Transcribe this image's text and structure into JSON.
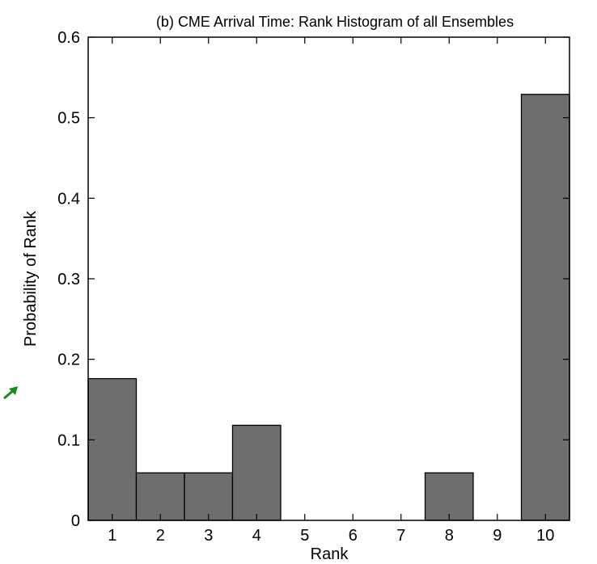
{
  "chart_data": {
    "type": "bar",
    "title": "(b) CME Arrival Time: Rank Histogram of all Ensembles",
    "xlabel": "Rank",
    "ylabel": "Probability of Rank",
    "categories": [
      "1",
      "2",
      "3",
      "4",
      "5",
      "6",
      "7",
      "8",
      "9",
      "10"
    ],
    "values": [
      0.176,
      0.059,
      0.059,
      0.118,
      0,
      0,
      0,
      0.059,
      0,
      0.529
    ],
    "ylim": [
      0,
      0.6
    ],
    "yticks": [
      "0",
      "0.1",
      "0.2",
      "0.3",
      "0.4",
      "0.5",
      "0.6"
    ],
    "grid": false,
    "bar_color": "#6e6e6e",
    "annotation_arrow_color": "#1a8a1a"
  }
}
